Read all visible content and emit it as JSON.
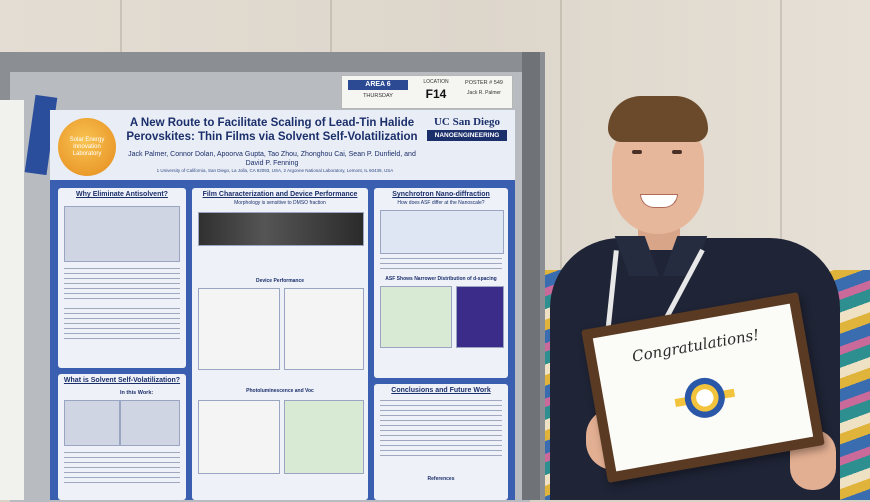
{
  "placard": {
    "area": "AREA 6",
    "day": "THURSDAY",
    "location_label": "LOCATION",
    "location": "F14",
    "poster_number": "POSTER # 549",
    "presenter": "Jack R. Palmer"
  },
  "poster": {
    "lab_logo": "Solar Energy Innovation Laboratory",
    "title": "A New Route to Facilitate Scaling of Lead-Tin Halide Perovskites: Thin Films via Solvent Self-Volatilization",
    "authors": "Jack Palmer, Connor Dolan, Apoorva Gupta, Tao Zhou, Zhonghou Cai, Sean P. Dunfield, and David P. Fenning",
    "affiliation": "1 University of California, San Diego, La Jolla, CA 92093, USA, 2 Argonne National Laboratory, Lemont, IL 60439, USA",
    "institution": "UC San Diego",
    "department": "NANOENGINEERING",
    "sections": {
      "antisolvent": "Why Eliminate Antisolvent?",
      "self_volatilization": "What is Solvent Self-Volatilization?",
      "characterization": "Film Characterization and Device Performance",
      "morphology": "Morphology is sensitive to DMSO fraction",
      "device": "Device Performance",
      "photoluminescence": "Photoluminescence and Voc",
      "synchrotron": "Synchrotron Nano-diffraction",
      "asf_q": "How does ASF differ at the Nanoscale?",
      "asf_dist": "ASF Shows Narrower Distribution of d-spacing",
      "conclusions": "Conclusions and Future Work",
      "work_label": "In this Work:",
      "references": "References"
    }
  },
  "plaque": {
    "text": "Congratulations!"
  }
}
